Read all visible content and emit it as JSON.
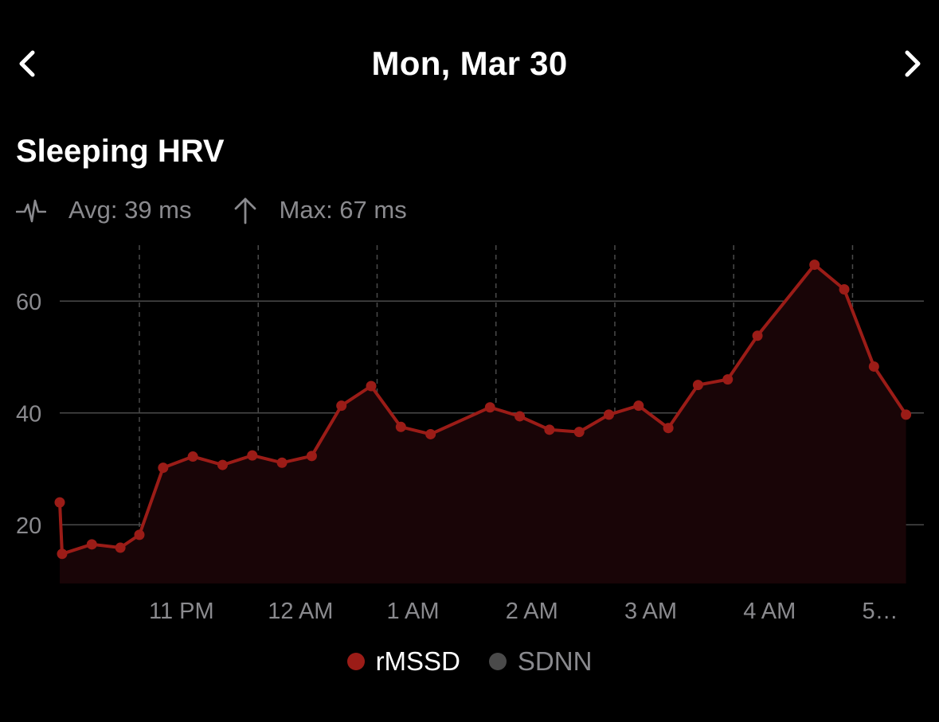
{
  "header": {
    "date": "Mon, Mar 30",
    "prev_icon": "chevron-left-icon",
    "next_icon": "chevron-right-icon"
  },
  "section": {
    "title": "Sleeping HRV"
  },
  "stats": {
    "avg_icon": "heartbeat-pulse-icon",
    "avg_label": "Avg: 39 ms",
    "max_icon": "arrow-up-icon",
    "max_label": "Max: 67 ms"
  },
  "colors": {
    "background": "#000000",
    "rmssd": "#9b1c17",
    "sdnn": "#4a4a4a",
    "fill": "#190507",
    "grid": "#4a4a4a",
    "axis_text": "#8a8a8e"
  },
  "chart_data": {
    "type": "line",
    "title": "",
    "xlabel": "",
    "ylabel": "",
    "ylim": [
      9.5,
      70
    ],
    "xlim_hours": [
      22.33,
      29.6
    ],
    "y_ticks": [
      20,
      40,
      60
    ],
    "x_ticks": [
      {
        "hour": 23,
        "label": "11 PM"
      },
      {
        "hour": 24,
        "label": "12 AM"
      },
      {
        "hour": 25,
        "label": "1 AM"
      },
      {
        "hour": 26,
        "label": "2 AM"
      },
      {
        "hour": 27,
        "label": "3 AM"
      },
      {
        "hour": 28,
        "label": "4 AM"
      },
      {
        "hour": 29,
        "label": "5…"
      }
    ],
    "grid": true,
    "legend": "bottom-center",
    "series": [
      {
        "name": "rMSSD",
        "x": [
          22.33,
          22.35,
          22.6,
          22.84,
          23.0,
          23.2,
          23.45,
          23.7,
          23.95,
          24.2,
          24.45,
          24.7,
          24.95,
          25.2,
          25.45,
          25.95,
          26.2,
          26.45,
          26.7,
          26.95,
          27.2,
          27.45,
          27.7,
          27.95,
          28.2,
          28.68,
          28.93,
          29.18,
          29.45
        ],
        "values": [
          24,
          14.8,
          16.5,
          15.9,
          18.2,
          30.2,
          32.2,
          30.7,
          32.4,
          31.1,
          32.3,
          41.3,
          44.8,
          37.5,
          36.2,
          41,
          39.4,
          37,
          36.6,
          39.7,
          41.3,
          37.3,
          45,
          46,
          53.8,
          66.5,
          62.1,
          48.3,
          39.7
        ]
      },
      {
        "name": "SDNN",
        "x": [],
        "values": []
      }
    ]
  }
}
